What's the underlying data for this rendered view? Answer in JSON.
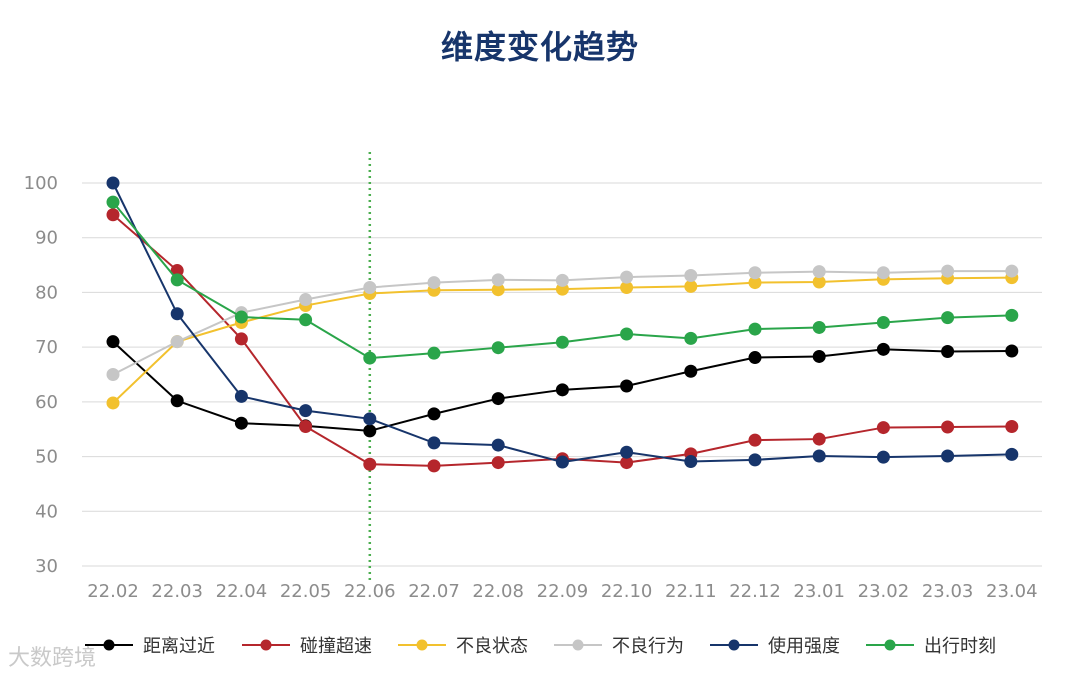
{
  "chart_data": {
    "type": "line",
    "title": "维度变化趋势",
    "xlabel": "",
    "ylabel": "",
    "ylim": [
      30,
      100
    ],
    "yticks": [
      30,
      40,
      50,
      60,
      70,
      80,
      90,
      100
    ],
    "grid": true,
    "legend_position": "bottom",
    "marker_line_at": "22.06",
    "categories": [
      "22.02",
      "22.03",
      "22.04",
      "22.05",
      "22.06",
      "22.07",
      "22.08",
      "22.09",
      "22.10",
      "22.11",
      "22.12",
      "23.01",
      "23.02",
      "23.03",
      "23.04"
    ],
    "series": [
      {
        "name": "距离过近",
        "color": "#000000",
        "values": [
          71,
          60.2,
          56.1,
          55.6,
          54.7,
          57.8,
          60.6,
          62.2,
          62.9,
          65.6,
          68.1,
          68.3,
          69.6,
          69.2,
          69.3
        ]
      },
      {
        "name": "碰撞超速",
        "color": "#b5262c",
        "values": [
          94.2,
          84,
          71.5,
          55.5,
          48.6,
          48.3,
          48.9,
          49.6,
          48.9,
          50.5,
          53,
          53.2,
          55.3,
          55.4,
          55.5
        ]
      },
      {
        "name": "不良状态",
        "color": "#f2c12e",
        "values": [
          59.8,
          71,
          74.5,
          77.6,
          79.8,
          80.4,
          80.5,
          80.6,
          80.9,
          81.1,
          81.8,
          81.9,
          82.4,
          82.6,
          82.7
        ]
      },
      {
        "name": "不良行为",
        "color": "#c6c6c6",
        "values": [
          65,
          71,
          76.3,
          78.7,
          80.9,
          81.8,
          82.3,
          82.2,
          82.8,
          83.1,
          83.6,
          83.8,
          83.6,
          83.9,
          83.9
        ]
      },
      {
        "name": "使用强度",
        "color": "#17356b",
        "values": [
          100,
          76.1,
          61,
          58.4,
          56.9,
          52.5,
          52.1,
          49,
          50.8,
          49.1,
          49.4,
          50.1,
          49.9,
          50.1,
          50.4
        ]
      },
      {
        "name": "出行时刻",
        "color": "#2aa54a",
        "values": [
          96.5,
          82.3,
          75.5,
          75,
          68,
          68.9,
          69.9,
          70.9,
          72.4,
          71.6,
          73.3,
          73.6,
          74.5,
          75.4,
          75.8
        ]
      }
    ]
  },
  "watermark": "大数跨境"
}
